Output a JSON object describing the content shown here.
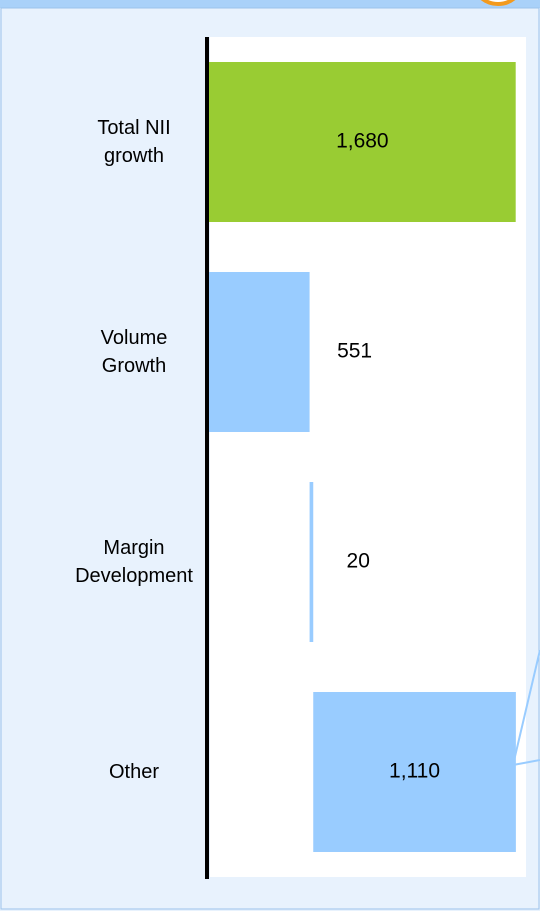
{
  "chart_data": {
    "type": "waterfall",
    "categories": [
      "Total NII growth",
      "Volume Growth",
      "Margin Development",
      "Other"
    ],
    "values": [
      1680,
      551,
      20,
      1110
    ],
    "value_labels": [
      "1,680",
      "551",
      "20",
      "1,110"
    ],
    "colors": [
      "#99cc33",
      "#99ccff",
      "#99ccff",
      "#99ccff"
    ],
    "xlim": [
      0,
      1720
    ]
  }
}
